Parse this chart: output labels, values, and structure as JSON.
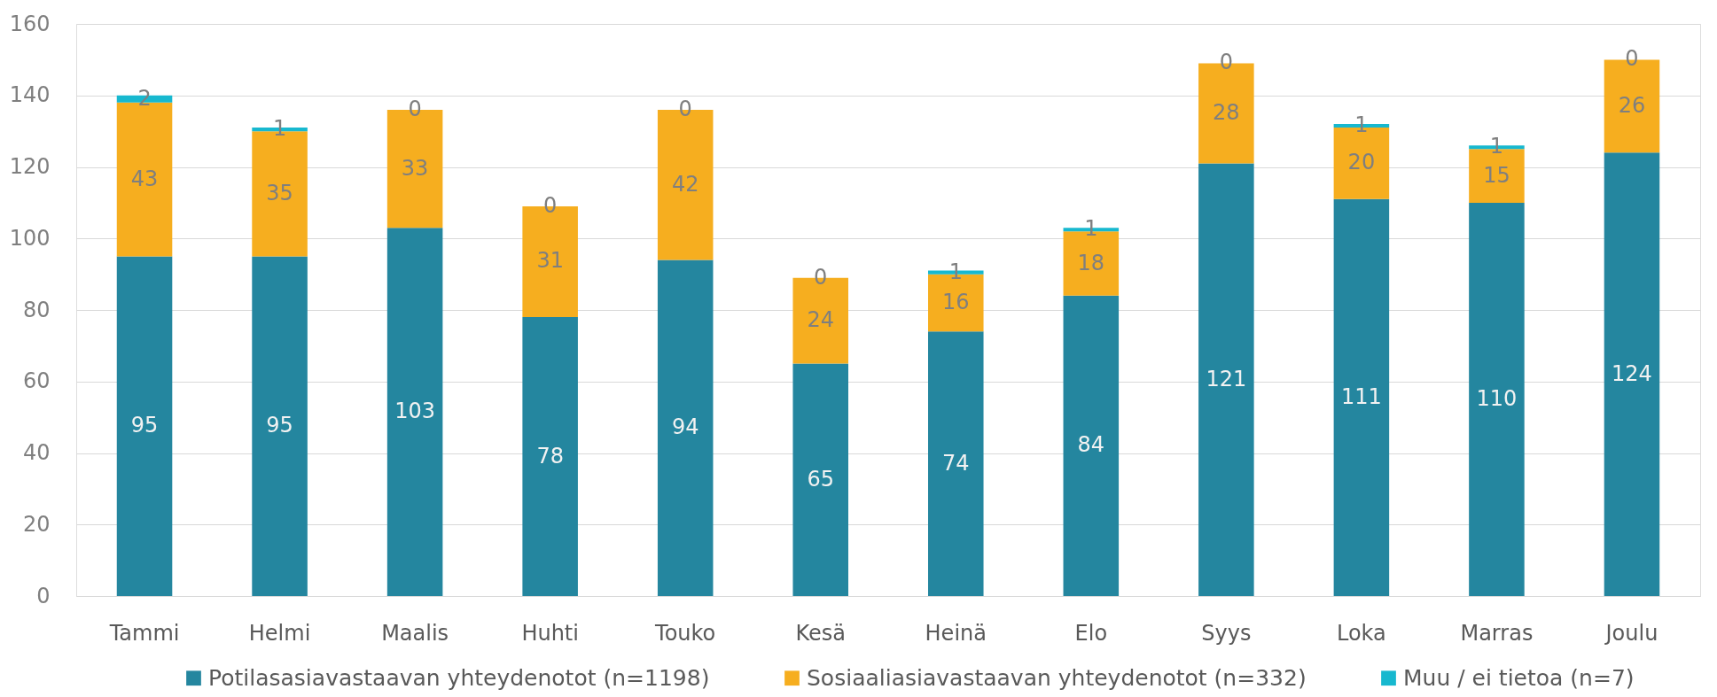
{
  "chart_data": {
    "type": "bar",
    "stacked": true,
    "categories": [
      "Tammi",
      "Helmi",
      "Maalis",
      "Huhti",
      "Touko",
      "Kesä",
      "Heinä",
      "Elo",
      "Syys",
      "Loka",
      "Marras",
      "Joulu"
    ],
    "series": [
      {
        "name": "Potilasasiavastaavan yhteydenotot (n=1198)",
        "color": "#24869f",
        "values": [
          95,
          95,
          103,
          78,
          94,
          65,
          74,
          84,
          121,
          111,
          110,
          124
        ]
      },
      {
        "name": "Sosiaaliasiavastaavan yhteydenotot (n=332)",
        "color": "#f6ae1f",
        "values": [
          43,
          35,
          33,
          31,
          42,
          24,
          16,
          18,
          28,
          20,
          15,
          26
        ]
      },
      {
        "name": "Muu / ei tietoa (n=7)",
        "color": "#17b8cf",
        "values": [
          2,
          1,
          0,
          0,
          0,
          0,
          1,
          1,
          0,
          1,
          1,
          0
        ]
      }
    ],
    "ylim": [
      0,
      160
    ],
    "yticks": [
      0,
      20,
      40,
      60,
      80,
      100,
      120,
      140,
      160
    ],
    "grid": "y",
    "legend": "bottom",
    "data_labels": true
  }
}
